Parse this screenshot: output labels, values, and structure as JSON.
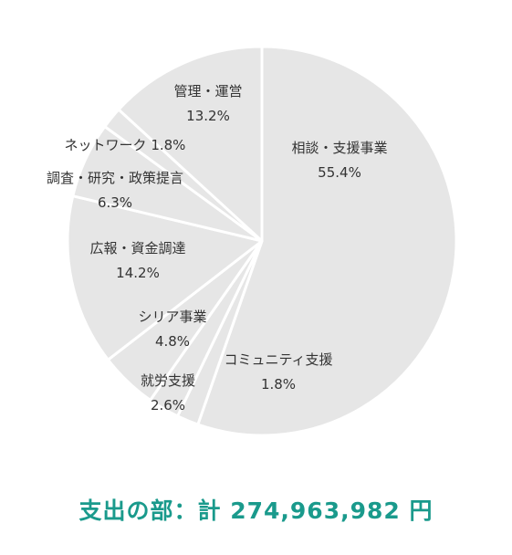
{
  "chart_data": {
    "type": "pie",
    "title": "",
    "slices": [
      {
        "label": "相談・支援事業",
        "value": 55.4,
        "value_label": "55.4%"
      },
      {
        "label": "コミュニティ支援",
        "value": 1.8,
        "value_label": "1.8%"
      },
      {
        "label": "就労支援",
        "value": 2.6,
        "value_label": "2.6%"
      },
      {
        "label": "シリア事業",
        "value": 4.8,
        "value_label": "4.8%"
      },
      {
        "label": "広報・資金調達",
        "value": 14.2,
        "value_label": "14.2%"
      },
      {
        "label": "調査・研究・政策提言",
        "value": 6.3,
        "value_label": "6.3%"
      },
      {
        "label": "ネットワーク",
        "value": 1.8,
        "value_label": "1.8%"
      },
      {
        "label": "管理・運営",
        "value": 13.2,
        "value_label": "13.2%"
      }
    ],
    "fill_color": "#e6e6e6",
    "separator_color": "#ffffff"
  },
  "footer": {
    "total_text": "支出の部：計 274,963,982 円",
    "color": "#1a9a8c"
  }
}
